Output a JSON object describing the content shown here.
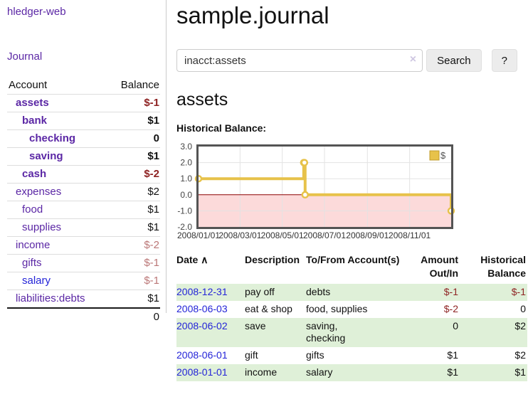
{
  "app": {
    "title": "hledger-web",
    "nav_journal": "Journal"
  },
  "sidebar": {
    "col_account": "Account",
    "col_balance": "Balance",
    "accounts": [
      {
        "name": "assets",
        "balance": "$-1",
        "depth": 1,
        "in_account": true,
        "balance_style": "negative-strong",
        "link_style": "purple"
      },
      {
        "name": "bank",
        "balance": "$1",
        "depth": 2,
        "in_account": true,
        "balance_style": "normal",
        "link_style": "purple"
      },
      {
        "name": "checking",
        "balance": "0",
        "depth": 3,
        "in_account": true,
        "balance_style": "normal",
        "link_style": "purple"
      },
      {
        "name": "saving",
        "balance": "$1",
        "depth": 3,
        "in_account": true,
        "balance_style": "normal",
        "link_style": "purple"
      },
      {
        "name": "cash",
        "balance": "$-2",
        "depth": 2,
        "in_account": true,
        "balance_style": "negative-strong",
        "link_style": "purple"
      },
      {
        "name": "expenses",
        "balance": "$2",
        "depth": 1,
        "in_account": false,
        "balance_style": "normal",
        "link_style": "purple"
      },
      {
        "name": "food",
        "balance": "$1",
        "depth": 2,
        "in_account": false,
        "balance_style": "normal",
        "link_style": "purple"
      },
      {
        "name": "supplies",
        "balance": "$1",
        "depth": 2,
        "in_account": false,
        "balance_style": "normal",
        "link_style": "purple"
      },
      {
        "name": "income",
        "balance": "$-2",
        "depth": 1,
        "in_account": false,
        "balance_style": "negative-muted",
        "link_style": "purple"
      },
      {
        "name": "gifts",
        "balance": "$-1",
        "depth": 2,
        "in_account": false,
        "balance_style": "negative-muted",
        "link_style": "purple"
      },
      {
        "name": "salary",
        "balance": "$-1",
        "depth": 2,
        "in_account": false,
        "balance_style": "negative-muted",
        "link_style": "blue"
      },
      {
        "name": "liabilities:debts",
        "balance": "$1",
        "depth": 1,
        "in_account": false,
        "balance_style": "normal",
        "link_style": "purple"
      }
    ],
    "total": "0"
  },
  "main": {
    "title": "sample.journal",
    "search": {
      "value": "inacct:assets",
      "clear_icon": "×",
      "search_label": "Search",
      "help_label": "?"
    },
    "account_heading": "assets",
    "chart_title": "Historical Balance:"
  },
  "chart_data": {
    "type": "line",
    "step": true,
    "title": "Historical Balance",
    "series": [
      {
        "name": "$",
        "color": "#e7c24a",
        "points": [
          [
            "2008-01-01",
            1
          ],
          [
            "2008-06-01",
            2
          ],
          [
            "2008-06-02",
            2
          ],
          [
            "2008-06-03",
            0
          ],
          [
            "2008-12-31",
            -1
          ]
        ]
      }
    ],
    "ylim": [
      -2,
      3
    ],
    "yticks": [
      "3.0",
      "2.0",
      "1.0",
      "0.0",
      "-1.0",
      "-2.0"
    ],
    "xticks": [
      "2008/01/01",
      "2008/03/01",
      "2008/05/01",
      "2008/07/01",
      "2008/09/01",
      "2008/11/01"
    ],
    "x_range": [
      "2008-01-01",
      "2008-12-31"
    ],
    "legend_position": "top-right",
    "grid": true,
    "negative_region_color": "#fcdada",
    "zero_line_color": "#8b0000"
  },
  "register": {
    "columns": [
      {
        "label": "Date",
        "sort_icon": "∧",
        "align": "left"
      },
      {
        "label": "Description",
        "align": "left"
      },
      {
        "label": "To/From Account(s)",
        "align": "left"
      },
      {
        "label": "Amount Out/In",
        "align": "right"
      },
      {
        "label": "Historical Balance",
        "align": "right"
      }
    ],
    "rows": [
      {
        "date": "2008-12-31",
        "description": "pay off",
        "accounts": "debts",
        "amount": "$-1",
        "amount_negative": true,
        "balance": "$-1",
        "balance_negative": true
      },
      {
        "date": "2008-06-03",
        "description": "eat & shop",
        "accounts": "food, supplies",
        "amount": "$-2",
        "amount_negative": true,
        "balance": "0",
        "balance_negative": false
      },
      {
        "date": "2008-06-02",
        "description": "save",
        "accounts": "saving,\nchecking",
        "amount": "0",
        "amount_negative": false,
        "balance": "$2",
        "balance_negative": false
      },
      {
        "date": "2008-06-01",
        "description": "gift",
        "accounts": "gifts",
        "amount": "$1",
        "amount_negative": false,
        "balance": "$2",
        "balance_negative": false
      },
      {
        "date": "2008-01-01",
        "description": "income",
        "accounts": "salary",
        "amount": "$1",
        "amount_negative": false,
        "balance": "$1",
        "balance_negative": false
      }
    ]
  },
  "colors": {
    "link_purple": "#5b27a5",
    "link_blue": "#2424d8",
    "negative_strong": "#8e2323",
    "negative_muted": "#bb7777",
    "row_green": "#dff0d8",
    "chart_line": "#e7c24a"
  }
}
